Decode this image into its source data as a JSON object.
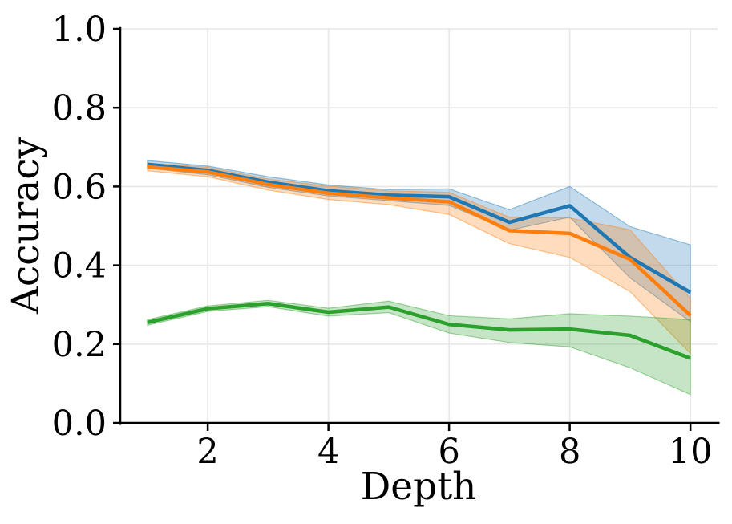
{
  "figure": {
    "background": "#ffffff",
    "grid_color": "#e7e7e7",
    "spine_color": "#000000",
    "text_color": "#000000"
  },
  "chart_data": {
    "type": "line",
    "title": "",
    "xlabel": "Depth",
    "ylabel": "Accuracy",
    "grid": true,
    "legend": "none",
    "xlim": [
      0.55,
      10.45
    ],
    "ylim": [
      0.0,
      1.0
    ],
    "xticks": [
      {
        "v": 2,
        "label": "2"
      },
      {
        "v": 4,
        "label": "4"
      },
      {
        "v": 6,
        "label": "6"
      },
      {
        "v": 8,
        "label": "8"
      },
      {
        "v": 10,
        "label": "10"
      }
    ],
    "yticks": [
      {
        "v": 0.0,
        "label": "0.0"
      },
      {
        "v": 0.2,
        "label": "0.2"
      },
      {
        "v": 0.4,
        "label": "0.4"
      },
      {
        "v": 0.6,
        "label": "0.6"
      },
      {
        "v": 0.8,
        "label": "0.8"
      },
      {
        "v": 1.0,
        "label": "1.0"
      }
    ],
    "x": [
      1,
      2,
      3,
      4,
      5,
      6,
      7,
      8,
      9,
      10
    ],
    "series": [
      {
        "name": "blue",
        "color": "#1f77b4",
        "values": [
          0.656,
          0.641,
          0.611,
          0.589,
          0.578,
          0.574,
          0.509,
          0.551,
          0.42,
          0.331
        ],
        "band_upper": [
          0.666,
          0.652,
          0.625,
          0.604,
          0.592,
          0.594,
          0.541,
          0.6,
          0.498,
          0.452
        ],
        "band_lower": [
          0.647,
          0.63,
          0.598,
          0.576,
          0.564,
          0.552,
          0.489,
          0.522,
          0.368,
          0.257
        ]
      },
      {
        "name": "orange",
        "color": "#ff7f0e",
        "values": [
          0.65,
          0.637,
          0.605,
          0.583,
          0.571,
          0.561,
          0.488,
          0.481,
          0.415,
          0.273
        ],
        "band_upper": [
          0.66,
          0.649,
          0.619,
          0.601,
          0.589,
          0.585,
          0.522,
          0.52,
          0.49,
          0.316
        ],
        "band_lower": [
          0.64,
          0.625,
          0.591,
          0.567,
          0.554,
          0.529,
          0.455,
          0.42,
          0.333,
          0.176
        ]
      },
      {
        "name": "green",
        "color": "#2ca02c",
        "values": [
          0.255,
          0.29,
          0.303,
          0.281,
          0.294,
          0.25,
          0.236,
          0.238,
          0.222,
          0.164
        ],
        "band_upper": [
          0.262,
          0.297,
          0.311,
          0.291,
          0.309,
          0.272,
          0.264,
          0.277,
          0.271,
          0.262
        ],
        "band_lower": [
          0.248,
          0.283,
          0.295,
          0.271,
          0.28,
          0.228,
          0.204,
          0.193,
          0.14,
          0.072
        ]
      }
    ]
  }
}
